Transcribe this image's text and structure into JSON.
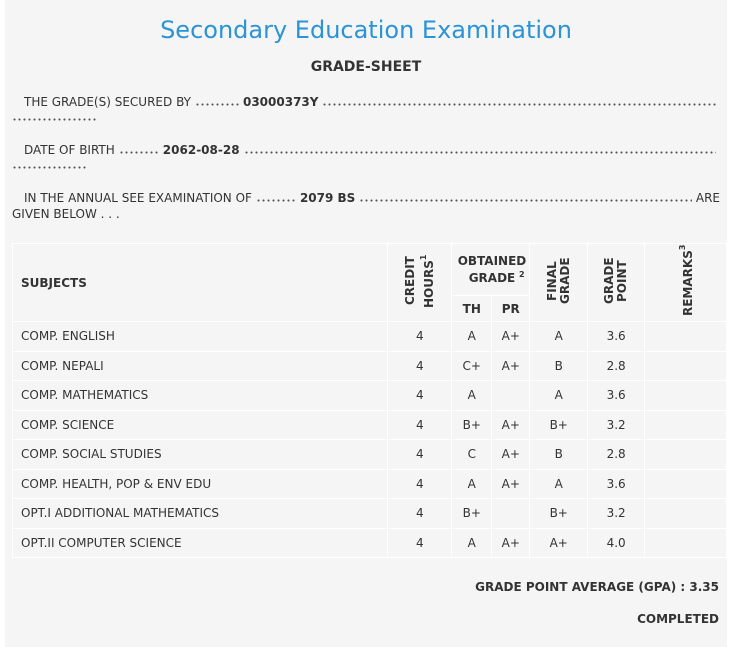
{
  "header": {
    "title": "Secondary Education Examination",
    "subtitle": "GRADE-SHEET"
  },
  "info": [
    {
      "label": "THE GRADE(S) SECURED BY",
      "value": "03000373Y"
    },
    {
      "label": "DATE OF BIRTH",
      "value": "2062-08-28"
    },
    {
      "label": "IN THE ANNUAL SEE EXAMINATION OF",
      "value": "2079 BS",
      "suffix": "ARE",
      "continuation": "GIVEN BELOW . . ."
    }
  ],
  "table": {
    "headers": {
      "subjects": "SUBJECTS",
      "credit_hours": "CREDIT HOURS",
      "credit_note": "1",
      "obtained_grade": "OBTAINED GRADE",
      "obtained_note": "2",
      "th": "TH",
      "pr": "PR",
      "final_grade": "FINAL GRADE",
      "grade_point": "GRADE POINT",
      "remarks": "REMARKS",
      "remarks_note": "3"
    },
    "rows": [
      [
        "COMP. ENGLISH",
        4,
        "A",
        "A+",
        "A",
        "3.6",
        null
      ],
      [
        "COMP. NEPALI",
        4,
        "C+",
        "A+",
        "B",
        "2.8",
        null
      ],
      [
        "COMP. MATHEMATICS",
        4,
        "A",
        null,
        "A",
        "3.6",
        null
      ],
      [
        "COMP. SCIENCE",
        4,
        "B+",
        "A+",
        "B+",
        "3.2",
        null
      ],
      [
        "COMP. SOCIAL STUDIES",
        4,
        "C",
        "A+",
        "B",
        "2.8",
        null
      ],
      [
        "COMP. HEALTH, POP & ENV EDU",
        4,
        "A",
        "A+",
        "A",
        "3.6",
        null
      ],
      [
        "OPT.I ADDITIONAL MATHEMATICS",
        4,
        "B+",
        null,
        "B+",
        "3.2",
        null
      ],
      [
        "OPT.II COMPUTER SCIENCE",
        4,
        "A",
        "A+",
        "A+",
        "4.0",
        null
      ]
    ]
  },
  "footer": {
    "gpa_label": "GRADE POINT AVERAGE (GPA) :",
    "gpa": "3.35",
    "status": "COMPLETED"
  }
}
